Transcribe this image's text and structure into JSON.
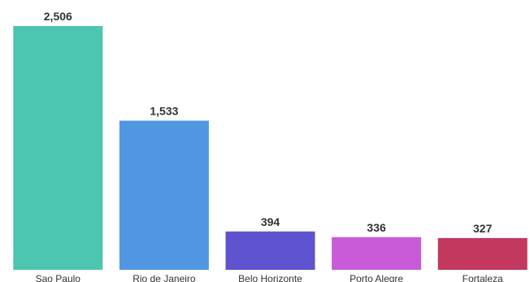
{
  "chart_data": {
    "type": "bar",
    "title": "",
    "xlabel": "",
    "ylabel": "",
    "categories": [
      "Sao Paulo",
      "Rio de Janeiro",
      "Belo Horizonte",
      "Porto Alegre",
      "Fortaleza"
    ],
    "values": [
      2506,
      1533,
      394,
      336,
      327
    ],
    "value_labels": [
      "2,506",
      "1,533",
      "394",
      "336",
      "327"
    ],
    "colors": [
      "#4cc5b1",
      "#5196e0",
      "#5e52cf",
      "#c95ad8",
      "#c2385f"
    ],
    "ylim": [
      0,
      2506
    ],
    "grid": false,
    "legend": "none"
  }
}
